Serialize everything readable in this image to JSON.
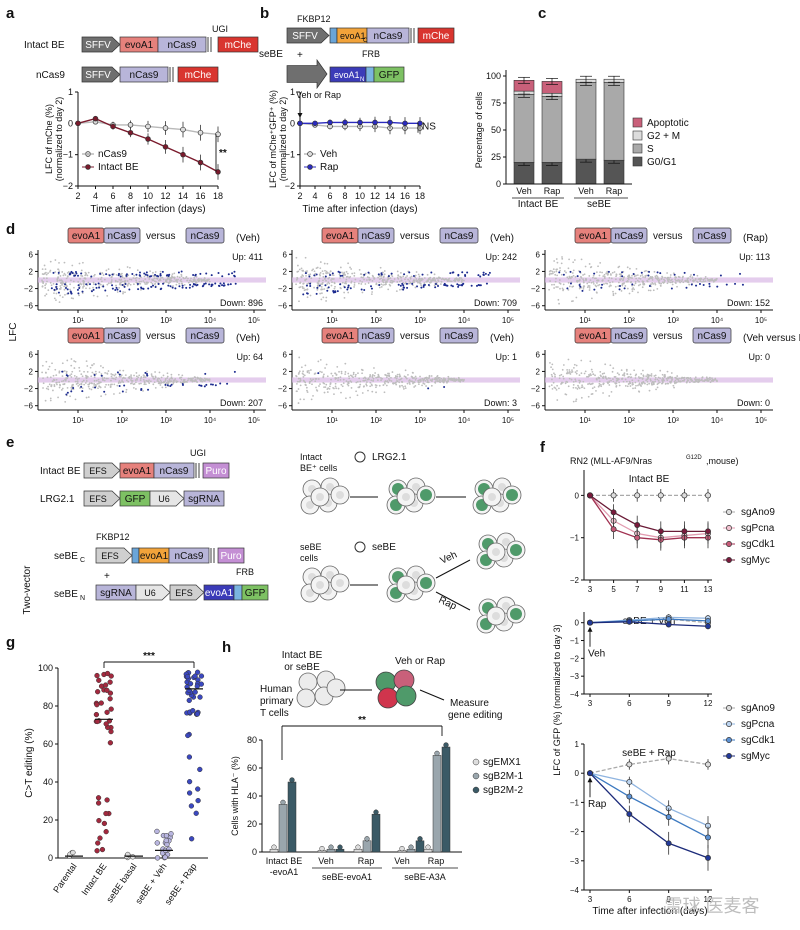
{
  "panels": {
    "a": {
      "letter": "a",
      "intact_label": "Intact BE",
      "nCas9_label": "nCas9",
      "constructs": {
        "SFFV": "SFFV",
        "evoA1": "evoA1",
        "nCas9": "nCas9",
        "mChe": "mChe",
        "UGI": "UGI"
      },
      "ylabel": "LFC of mChe (%)",
      "ylabel2": "(normalized to day 2)",
      "xlabel": "Time after infection (days)",
      "significance": "**",
      "legend": [
        "nCas9",
        "Intact BE"
      ],
      "x": [
        2,
        4,
        6,
        8,
        10,
        12,
        14,
        16,
        18
      ],
      "series_nCas9": [
        0,
        0.05,
        -0.05,
        -0.05,
        -0.1,
        -0.15,
        -0.2,
        -0.3,
        -0.35
      ],
      "series_intact": [
        0,
        0.15,
        -0.1,
        -0.3,
        -0.5,
        -0.75,
        -1.0,
        -1.25,
        -1.55
      ],
      "yticks": [
        1,
        0,
        -1,
        -2
      ],
      "colors": {
        "nCas9": "#b9b9b9",
        "intact": "#7a1a2c"
      }
    },
    "b": {
      "letter": "b",
      "seBE_label": "seBE",
      "plus": "+",
      "constructs": {
        "SFFV": "SFFV",
        "FKBP12": "FKBP12",
        "evoA1C": "evoA1",
        "sub_C": "C",
        "nCas9": "nCas9",
        "mChe": "mChe",
        "FRB": "FRB",
        "evoA1N": "evoA1",
        "sub_N": "N",
        "GFP": "GFP"
      },
      "ylabel": "LFC of mChe⁺GFP⁺ (%)",
      "ylabel2": "(normalized to day 2)",
      "xlabel": "Time after infection (days)",
      "annotation": "Veh or Rap",
      "ns": "NS",
      "legend": [
        "Veh",
        "Rap"
      ],
      "x": [
        2,
        4,
        6,
        8,
        10,
        12,
        14,
        16,
        18
      ],
      "series_veh": [
        0,
        -0.05,
        -0.1,
        -0.1,
        -0.1,
        -0.1,
        -0.15,
        -0.15,
        -0.15
      ],
      "series_rap": [
        0,
        0,
        0.03,
        0.03,
        0.03,
        0.03,
        0.03,
        0,
        0
      ]
    },
    "c": {
      "letter": "c",
      "ylabel": "Percentage of cells",
      "yticks": [
        0,
        25,
        50,
        75,
        100
      ],
      "categories": [
        "Veh",
        "Rap",
        "Veh",
        "Rap"
      ],
      "groups": [
        "Intact BE",
        "seBE"
      ],
      "legend": [
        "Apoptotic",
        "G2 + M",
        "S",
        "G0/G1"
      ],
      "colors": {
        "Apoptotic": "#c9607a",
        "G2M": "#dcdcdc",
        "S": "#a9a9a9",
        "G0G1": "#555555"
      },
      "stacks": [
        {
          "G0G1": 20,
          "S": 63,
          "G2M": 3,
          "Apoptotic": 10
        },
        {
          "G0G1": 20,
          "S": 61,
          "G2M": 3,
          "Apoptotic": 11
        },
        {
          "G0G1": 23,
          "S": 71,
          "G2M": 3,
          "Apoptotic": 0
        },
        {
          "G0G1": 22,
          "S": 72,
          "G2M": 3,
          "Apoptotic": 0
        }
      ]
    },
    "d": {
      "letter": "d",
      "ylabel": "LFC",
      "versus": "versus",
      "plots": [
        {
          "up": "Up: 411",
          "down": "Down: 896",
          "cond": "(Veh)"
        },
        {
          "up": "Up: 242",
          "down": "Down: 709",
          "cond": "(Veh)"
        },
        {
          "up": "Up: 113",
          "down": "Down: 152",
          "cond": "(Rap)"
        },
        {
          "up": "Up: 64",
          "down": "Down: 207",
          "cond": "(Veh)"
        },
        {
          "up": "Up: 1",
          "down": "Down: 3",
          "cond": "(Veh)"
        },
        {
          "up": "Up: 0",
          "down": "Down: 0",
          "cond": "(Veh versus Rap)"
        }
      ],
      "yticks": [
        "6",
        "2",
        "−2",
        "−6"
      ],
      "xticks": [
        "10¹",
        "10²",
        "10³",
        "10⁴",
        "10⁵"
      ]
    },
    "e": {
      "letter": "e",
      "intact_label": "Intact BE",
      "lrg_label": "LRG2.1",
      "two_vector": "Two-vector",
      "seBEC": "seBE",
      "seBEN": "seBE",
      "sub_C": "C",
      "sub_N": "N",
      "parts": {
        "EFS": "EFS",
        "evoA1": "evoA1",
        "nCas9": "nCas9",
        "Puro": "Puro",
        "UGI": "UGI",
        "GFP": "GFP",
        "U6": "U6",
        "sgRNA": "sgRNA",
        "FKBP12": "FKBP12",
        "FRB": "FRB"
      },
      "plus": "+",
      "cells_intact": "Intact",
      "cells_intact2": "BE⁺ cells",
      "virus_intact": "LRG2.1",
      "cells_seBEC": "seBE",
      "cells_seBEC2": "cells",
      "virus_seBEN": "seBE",
      "veh": "Veh",
      "rap": "Rap"
    },
    "f": {
      "letter": "f",
      "title": "RN2 (MLL-AF9/Nras",
      "title_sup": "G12D",
      "title_end": ",mouse)",
      "sub1": "Intact BE",
      "sub2": "seBE + Veh",
      "sub3": "seBE + Rap",
      "ylabel": "LFC of GFP (%) (normalized to day 3)",
      "xlabel": "Time after infection (days)",
      "veh_arrow": "Veh",
      "rap_arrow": "Rap",
      "legend1": [
        "sgAno9",
        "sgPcna",
        "sgCdk1",
        "sgMyc"
      ],
      "legend2": [
        "sgAno9",
        "sgPcna",
        "sgCdk1",
        "sgMyc"
      ],
      "x1": [
        3,
        5,
        7,
        9,
        11,
        13
      ],
      "x2": [
        3,
        6,
        9,
        12
      ],
      "series1": {
        "sgAno9": [
          0,
          0,
          0,
          0,
          0,
          0
        ],
        "sgPcna": [
          0,
          -0.6,
          -0.9,
          -1.0,
          -0.95,
          -0.9
        ],
        "sgCdk1": [
          0,
          -0.8,
          -1.0,
          -1.05,
          -1.0,
          -1.0
        ],
        "sgMyc": [
          0,
          -0.4,
          -0.7,
          -0.85,
          -0.85,
          -0.85
        ]
      },
      "series2": {
        "sgAno9": [
          0,
          0.1,
          0.2,
          0.0
        ],
        "sgPcna": [
          0,
          0.15,
          0.3,
          0.25
        ],
        "sgCdk1": [
          0,
          0.1,
          0.2,
          0.1
        ],
        "sgMyc": [
          0,
          0.05,
          -0.1,
          -0.2
        ]
      },
      "series3": {
        "sgAno9": [
          0,
          0.3,
          0.5,
          0.3
        ],
        "sgPcna": [
          0,
          -0.3,
          -1.2,
          -1.8
        ],
        "sgCdk1": [
          0,
          -0.8,
          -1.5,
          -2.2
        ],
        "sgMyc": [
          0,
          -1.4,
          -2.4,
          -2.9
        ]
      }
    },
    "g": {
      "letter": "g",
      "ylabel": "C>T editing (%)",
      "yticks": [
        0,
        20,
        40,
        60,
        80,
        100
      ],
      "categories": [
        "Parental",
        "Intact BE",
        "seBE basal",
        "seBE + Veh",
        "seBE + Rap"
      ],
      "significance": "***",
      "medians": [
        1,
        73,
        1,
        4,
        89
      ]
    },
    "h": {
      "letter": "h",
      "step1": "Intact BE",
      "step1b": "or seBE",
      "step2": "Veh or Rap",
      "step3": "Measure",
      "step3b": "gene editing",
      "cells": "Human",
      "cells2": "primary",
      "cells3": "T cells",
      "ylabel": "Cells with HLA⁻ (%)",
      "yticks": [
        0,
        20,
        40,
        60,
        80
      ],
      "significance": "**",
      "legend": [
        "sgEMX1",
        "sgB2M-1",
        "sgB2M-2"
      ],
      "xlabels": [
        "Intact BE",
        "-evoA1",
        "Veh",
        "Rap",
        "Veh",
        "Rap"
      ],
      "group_labels": [
        "seBE-evoA1",
        "seBE-A3A"
      ],
      "bars": [
        [
          2,
          34,
          50
        ],
        [
          1,
          2,
          2
        ],
        [
          2,
          8,
          27
        ],
        [
          1,
          2,
          8
        ],
        [
          2,
          69,
          75
        ]
      ]
    }
  },
  "watermark": "雪球 医麦客"
}
